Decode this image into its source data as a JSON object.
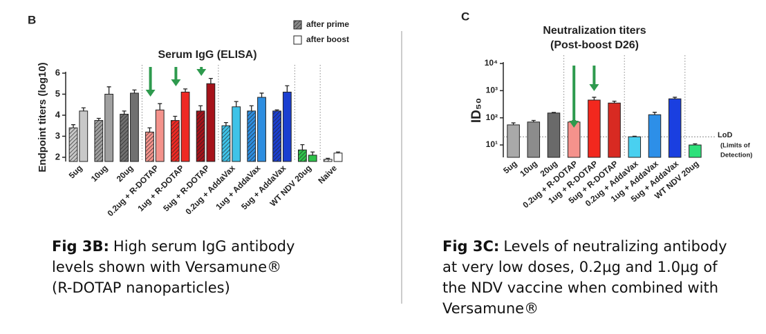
{
  "chart_data": [
    {
      "type": "bar",
      "panel": "B",
      "title": "Serum IgG (ELISA)",
      "ylabel": "Endpoint titers (log10)",
      "categories": [
        "5ug",
        "10ug",
        "20ug",
        "0.2ug + R-DOTAP",
        "1ug + R-DOTAP",
        "5ug + R-DOTAP",
        "0.2ug + AddaVax",
        "1ug + AddaVax",
        "5ug + AddaVax",
        "WT NDV 20ug",
        "Naive"
      ],
      "colors": [
        "#c8c8c8",
        "#a0a0a0",
        "#707070",
        "#f4938c",
        "#ee2a24",
        "#a5121a",
        "#3fc3e8",
        "#2e8ee0",
        "#1b3fd0",
        "#2ec24a",
        "#ffffff"
      ],
      "series": [
        {
          "name": "after prime",
          "color": "#8a8a8a",
          "hatch": true,
          "values": [
            3.4,
            3.75,
            4.05,
            3.2,
            3.75,
            4.2,
            3.5,
            4.2,
            4.2,
            2.35,
            1.9
          ],
          "errors": [
            0.15,
            0.1,
            0.15,
            0.2,
            0.2,
            0.25,
            0.15,
            0.25,
            0.05,
            0.25,
            0.05
          ]
        },
        {
          "name": "after boost",
          "color": "#ffffff",
          "hatch": false,
          "values": [
            4.2,
            5.0,
            5.05,
            4.25,
            5.1,
            5.5,
            4.4,
            4.85,
            5.1,
            2.1,
            2.2
          ],
          "errors": [
            0.15,
            0.35,
            0.15,
            0.3,
            0.15,
            0.25,
            0.25,
            0.2,
            0.3,
            0.15,
            0.05
          ]
        }
      ],
      "ylim": [
        1.8,
        6
      ],
      "yticks": [
        2,
        3,
        4,
        5,
        6
      ]
    },
    {
      "type": "bar",
      "panel": "C",
      "title": "Neutralization titers",
      "subtitle": "(Post-boost D26)",
      "ylabel": "ID₅₀",
      "log_y": true,
      "categories": [
        "5ug",
        "10ug",
        "20ug",
        "0.2ug + R-DOTAP",
        "1ug + R-DOTAP",
        "5ug + R-DOTAP",
        "0.2ug + AddaVax",
        "1ug + AddaVax",
        "5ug + AddaVax",
        "WT NDV 20ug"
      ],
      "colors": [
        "#a9a9a9",
        "#8c8c8c",
        "#6a6a6a",
        "#f5928c",
        "#f2281e",
        "#d82a22",
        "#49d0f0",
        "#2d8fe8",
        "#1a3fe0",
        "#2ee07a"
      ],
      "values": [
        55,
        70,
        150,
        70,
        450,
        350,
        20,
        130,
        500,
        10
      ],
      "errors": [
        10,
        10,
        8,
        8,
        120,
        60,
        1,
        30,
        70,
        1
      ],
      "ylim": [
        3.5,
        10000
      ],
      "yticks": [
        {
          "value": 10,
          "label": "10¹"
        },
        {
          "value": 100,
          "label": "10²"
        },
        {
          "value": 1000,
          "label": "10³"
        },
        {
          "value": 10000,
          "label": "10⁴"
        }
      ],
      "lod": {
        "value": 20,
        "label": "LoD",
        "note": [
          "(Limits of",
          "Detection)"
        ]
      }
    }
  ],
  "captions": [
    {
      "label": "Fig 3B:",
      "lines": [
        "High serum IgG antibody",
        "levels shown with Versamune®",
        "(R-DOTAP nanoparticles)"
      ]
    },
    {
      "label": "Fig 3C:",
      "lines": [
        "Levels of neutralizing antibody",
        "at very low doses, 0.2µg and 1.0µg of",
        "the NDV vaccine when combined with",
        "Versamune®"
      ]
    }
  ]
}
